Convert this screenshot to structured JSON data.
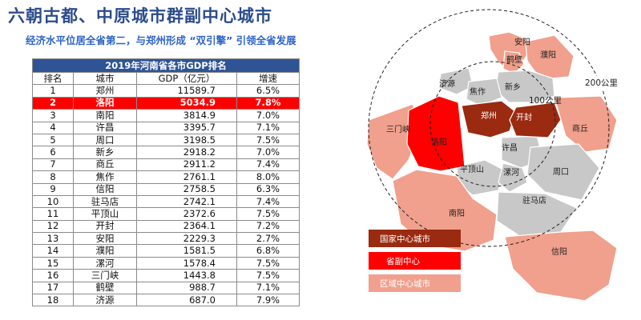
{
  "header": {
    "title": "六朝古都、中原城市群副中心城市",
    "subtitle": "经济水平位居全省第二，与郑州形成 “双引擎” 引领全省发展"
  },
  "table": {
    "caption": "2019年河南省各市GDP排名",
    "columns": [
      "排名",
      "城市",
      "GDP（亿元）",
      "增速"
    ],
    "highlight_rank": 2,
    "highlight_color": "#ff0000",
    "rows": [
      {
        "rank": "1",
        "city": "郑州",
        "gdp": "11589.7",
        "growth": "6.5%"
      },
      {
        "rank": "2",
        "city": "洛阳",
        "gdp": "5034.9",
        "growth": "7.8%"
      },
      {
        "rank": "3",
        "city": "南阳",
        "gdp": "3814.9",
        "growth": "7.0%"
      },
      {
        "rank": "4",
        "city": "许昌",
        "gdp": "3395.7",
        "growth": "7.1%"
      },
      {
        "rank": "5",
        "city": "周口",
        "gdp": "3198.5",
        "growth": "7.5%"
      },
      {
        "rank": "6",
        "city": "新乡",
        "gdp": "2918.2",
        "growth": "7.0%"
      },
      {
        "rank": "7",
        "city": "商丘",
        "gdp": "2911.2",
        "growth": "7.4%"
      },
      {
        "rank": "8",
        "city": "焦作",
        "gdp": "2761.1",
        "growth": "8.0%"
      },
      {
        "rank": "9",
        "city": "信阳",
        "gdp": "2758.5",
        "growth": "6.3%"
      },
      {
        "rank": "10",
        "city": "驻马店",
        "gdp": "2742.1",
        "growth": "7.4%"
      },
      {
        "rank": "11",
        "city": "平顶山",
        "gdp": "2372.6",
        "growth": "7.5%"
      },
      {
        "rank": "12",
        "city": "开封",
        "gdp": "2364.1",
        "growth": "7.2%"
      },
      {
        "rank": "13",
        "city": "安阳",
        "gdp": "2229.3",
        "growth": "2.7%"
      },
      {
        "rank": "14",
        "city": "濮阳",
        "gdp": "1581.5",
        "growth": "6.8%"
      },
      {
        "rank": "15",
        "city": "漯河",
        "gdp": "1578.4",
        "growth": "7.5%"
      },
      {
        "rank": "16",
        "city": "三门峡",
        "gdp": "1443.8",
        "growth": "7.5%"
      },
      {
        "rank": "17",
        "city": "鹤壁",
        "gdp": "988.7",
        "growth": "7.1%"
      },
      {
        "rank": "18",
        "city": "济源",
        "gdp": "687.0",
        "growth": "7.9%"
      }
    ]
  },
  "map": {
    "city_labels": {
      "anyang": "安阳",
      "hebi": "鹤壁",
      "puyang": "濮阳",
      "jiyuan": "济源",
      "xinxiang": "新乡",
      "jiaozuo": "焦作",
      "sanmenxia": "三门峡",
      "zhengzhou": "郑州",
      "kaifeng": "开封",
      "shangqiu": "商丘",
      "luoyang": "洛阳",
      "xuchang": "许昌",
      "pingdingshan": "平顶山",
      "luohe": "漯河",
      "zhoukou": "周口",
      "nanyang": "南阳",
      "zhumadian": "驻马店",
      "xinyang": "信阳"
    },
    "distance_labels": {
      "inner": "100公里",
      "outer": "200公里"
    },
    "legend": [
      {
        "label": "国家中心城市",
        "color": "#9a2a10"
      },
      {
        "label": "省副中心",
        "color": "#ff0000"
      },
      {
        "label": "区域中心城市",
        "color": "#f0a08c"
      }
    ],
    "colors": {
      "other": "#c8c8c8",
      "border": "#ffffff"
    }
  }
}
